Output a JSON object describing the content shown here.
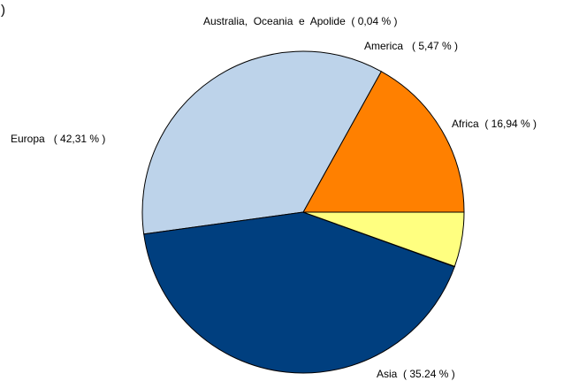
{
  "chart_data": {
    "type": "pie",
    "title": "",
    "corner_text": ")",
    "slices": [
      {
        "name": "Africa",
        "value": 16.94,
        "label": "Africa  ( 16,94 % )",
        "color": "#FF8000"
      },
      {
        "name": "Asia",
        "value": 35.24,
        "label": "Asia  ( 35.24 % )",
        "color": "#BDD3EA"
      },
      {
        "name": "Europa",
        "value": 42.31,
        "label": "Europa   ( 42,31 % )",
        "color": "#003F7F"
      },
      {
        "name": "Australia, Oceania e Apolide",
        "value": 0.04,
        "label": "Australia,  Oceania  e  Apolide  ( 0,04 % )",
        "color": "#FFFF80"
      },
      {
        "name": "America",
        "value": 5.47,
        "label": "America   ( 5,47 % )",
        "color": "#FFFF80"
      }
    ],
    "legend": "none"
  }
}
